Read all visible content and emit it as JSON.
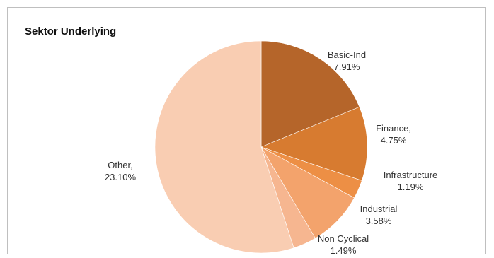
{
  "chart_data": {
    "type": "pie",
    "title": "Sektor Underlying",
    "slices": [
      {
        "category": "Basic-Ind",
        "label_line1": "Basic-Ind",
        "label_line2": "7.91%",
        "value": 7.91,
        "color": "#b5652a"
      },
      {
        "category": "Finance",
        "label_line1": "Finance,",
        "label_line2": "4.75%",
        "value": 4.75,
        "color": "#d77b30"
      },
      {
        "category": "Infrastructure",
        "label_line1": "Infrastructure",
        "label_line2": "1.19%",
        "value": 1.19,
        "color": "#ed8f45"
      },
      {
        "category": "Industrial",
        "label_line1": "Industrial",
        "label_line2": "3.58%",
        "value": 3.58,
        "color": "#f3a36c"
      },
      {
        "category": "Non Cyclical",
        "label_line1": "Non Cyclical",
        "label_line2": "1.49%",
        "value": 1.49,
        "color": "#f6b690"
      },
      {
        "category": "Other",
        "label_line1": "Other,",
        "label_line2": "23.10%",
        "value": 23.1,
        "color": "#f9cdb2"
      }
    ],
    "start_angle_deg": 0,
    "direction": "clockwise",
    "legend": "none"
  }
}
